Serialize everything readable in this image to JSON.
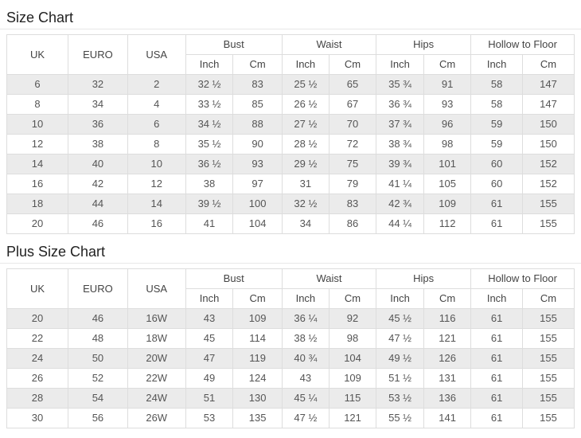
{
  "colors": {
    "row_alt_background": "#ebebeb",
    "border": "#dddddd",
    "body_text": "#555555",
    "title_text": "#222222"
  },
  "sections": [
    {
      "title": "Size Chart",
      "header": {
        "uk": "UK",
        "euro": "EURO",
        "usa": "USA",
        "groups": [
          "Bust",
          "Waist",
          "Hips",
          "Hollow to Floor"
        ],
        "sub_inch": "Inch",
        "sub_cm": "Cm"
      },
      "rows": [
        [
          "6",
          "32",
          "2",
          "32 ½",
          "83",
          "25 ½",
          "65",
          "35 ¾",
          "91",
          "58",
          "147"
        ],
        [
          "8",
          "34",
          "4",
          "33 ½",
          "85",
          "26 ½",
          "67",
          "36 ¾",
          "93",
          "58",
          "147"
        ],
        [
          "10",
          "36",
          "6",
          "34 ½",
          "88",
          "27 ½",
          "70",
          "37 ¾",
          "96",
          "59",
          "150"
        ],
        [
          "12",
          "38",
          "8",
          "35 ½",
          "90",
          "28 ½",
          "72",
          "38 ¾",
          "98",
          "59",
          "150"
        ],
        [
          "14",
          "40",
          "10",
          "36 ½",
          "93",
          "29 ½",
          "75",
          "39 ¾",
          "101",
          "60",
          "152"
        ],
        [
          "16",
          "42",
          "12",
          "38",
          "97",
          "31",
          "79",
          "41 ¼",
          "105",
          "60",
          "152"
        ],
        [
          "18",
          "44",
          "14",
          "39 ½",
          "100",
          "32 ½",
          "83",
          "42 ¾",
          "109",
          "61",
          "155"
        ],
        [
          "20",
          "46",
          "16",
          "41",
          "104",
          "34",
          "86",
          "44 ¼",
          "112",
          "61",
          "155"
        ]
      ]
    },
    {
      "title": "Plus Size Chart",
      "header": {
        "uk": "UK",
        "euro": "EURO",
        "usa": "USA",
        "groups": [
          "Bust",
          "Waist",
          "Hips",
          "Hollow to Floor"
        ],
        "sub_inch": "Inch",
        "sub_cm": "Cm"
      },
      "rows": [
        [
          "20",
          "46",
          "16W",
          "43",
          "109",
          "36 ¼",
          "92",
          "45 ½",
          "116",
          "61",
          "155"
        ],
        [
          "22",
          "48",
          "18W",
          "45",
          "114",
          "38 ½",
          "98",
          "47 ½",
          "121",
          "61",
          "155"
        ],
        [
          "24",
          "50",
          "20W",
          "47",
          "119",
          "40 ¾",
          "104",
          "49 ½",
          "126",
          "61",
          "155"
        ],
        [
          "26",
          "52",
          "22W",
          "49",
          "124",
          "43",
          "109",
          "51 ½",
          "131",
          "61",
          "155"
        ],
        [
          "28",
          "54",
          "24W",
          "51",
          "130",
          "45 ¼",
          "115",
          "53 ½",
          "136",
          "61",
          "155"
        ],
        [
          "30",
          "56",
          "26W",
          "53",
          "135",
          "47 ½",
          "121",
          "55 ½",
          "141",
          "61",
          "155"
        ]
      ]
    }
  ]
}
